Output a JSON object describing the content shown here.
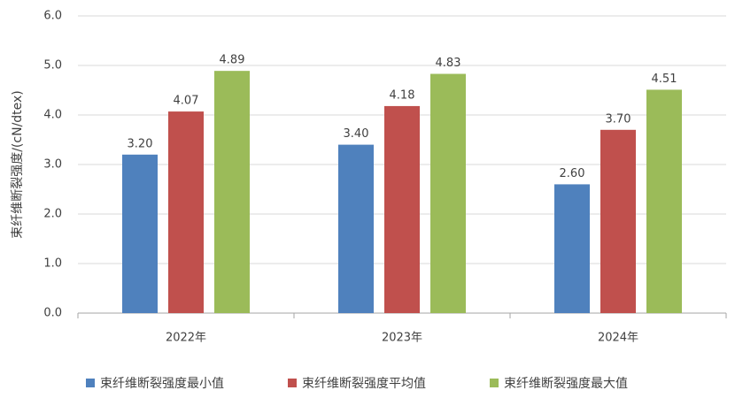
{
  "chart_data": {
    "type": "bar",
    "y_label": "束纤维断裂强度/(cN/dtex)",
    "categories": [
      "2022年",
      "2023年",
      "2024年"
    ],
    "series": [
      {
        "name": "束纤维断裂强度最小值",
        "color": "#4f81bd",
        "values": [
          3.2,
          3.4,
          2.6
        ],
        "value_labels": [
          "3.20",
          "3.40",
          "2.60"
        ]
      },
      {
        "name": "束纤维断裂强度平均值",
        "color": "#c0504d",
        "values": [
          4.07,
          4.18,
          3.7
        ],
        "value_labels": [
          "4.07",
          "4.18",
          "3.70"
        ]
      },
      {
        "name": "束纤维断裂强度最大值",
        "color": "#9bbb59",
        "values": [
          4.89,
          4.83,
          4.51
        ],
        "value_labels": [
          "4.89",
          "4.83",
          "4.51"
        ]
      }
    ],
    "ylim": [
      0,
      6
    ],
    "yticks": [
      {
        "value": 0,
        "label": "0.0"
      },
      {
        "value": 1,
        "label": "1.0"
      },
      {
        "value": 2,
        "label": "2.0"
      },
      {
        "value": 3,
        "label": "3.0"
      },
      {
        "value": 4,
        "label": "4.0"
      },
      {
        "value": 5,
        "label": "5.0"
      },
      {
        "value": 6,
        "label": "6.0"
      }
    ],
    "grid": true
  }
}
